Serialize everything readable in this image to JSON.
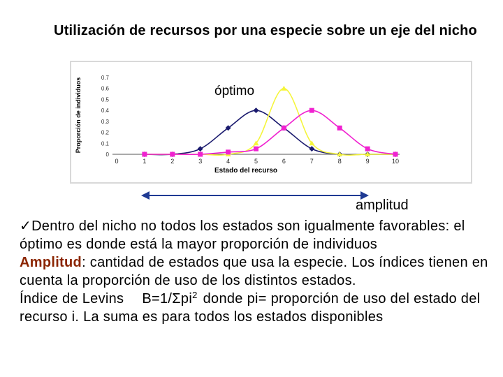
{
  "slide": {
    "title": "Utilización de recursos por una especie sobre un eje del nicho",
    "optimo_label": "óptimo",
    "amplitud_label": "amplitud",
    "bullet_icon": "checkmark-icon",
    "bullet_text": "Dentro del nicho no todos los estados son igualmente favorables: el óptimo es donde está la mayor proporción de individuos",
    "amplitud_term": "Amplitud",
    "amplitud_def": ": cantidad de estados que usa la especie. Los índices tienen en cuenta la proporción de uso de los distintos estados.",
    "levins_label": "Índice de Levins",
    "levins_formula": "B=1/Σpi",
    "levins_exponent": "2",
    "levins_where": "donde pi= proporción de uso del estado del recurso i. La suma es para todos los estados disponibles",
    "colors": {
      "highlight": "#8b2500"
    }
  },
  "chart_data": {
    "type": "line",
    "x": [
      1,
      2,
      3,
      4,
      5,
      6,
      7,
      8,
      9,
      10
    ],
    "xticks": [
      "0",
      "1",
      "2",
      "3",
      "4",
      "5",
      "6",
      "7",
      "8",
      "9",
      "10"
    ],
    "yticks": [
      "0",
      "0.1",
      "0.2",
      "0.3",
      "0.4",
      "0.5",
      "0.6",
      "0.7"
    ],
    "xlim": [
      0,
      10
    ],
    "ylim": [
      0,
      0.7
    ],
    "xlabel": "Estado del recurso",
    "ylabel": "Proporción de individuos",
    "grid": false,
    "series": [
      {
        "color": "#1a1a6e",
        "marker": "diamond",
        "values": [
          0,
          0,
          0.05,
          0.24,
          0.4,
          0.24,
          0.05,
          0,
          0,
          0
        ]
      },
      {
        "color": "#f5f53c",
        "marker": "triangle",
        "values": [
          0,
          0,
          0,
          0,
          0.1,
          0.6,
          0.1,
          0,
          0,
          0
        ]
      },
      {
        "color": "#f022d0",
        "marker": "square",
        "values": [
          0,
          0,
          0,
          0.02,
          0.05,
          0.24,
          0.4,
          0.24,
          0.05,
          0
        ]
      }
    ]
  }
}
